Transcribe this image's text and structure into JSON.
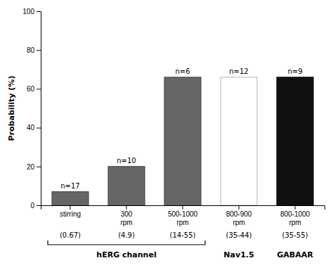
{
  "chart_data": {
    "type": "bar",
    "categories": [
      "stirring",
      "300\nrpm",
      "500-1000\nrpm",
      "800-900\nrpm",
      "800-1000\nrpm"
    ],
    "values": [
      7,
      20,
      66,
      66,
      66
    ],
    "colors": [
      "#666666",
      "#666666",
      "#666666",
      "#ffffff",
      "#111111"
    ],
    "y_label": "Probability (%)",
    "ylim": [
      0,
      100
    ],
    "yticks": [
      0,
      20,
      40,
      60,
      80,
      100
    ],
    "grid": false,
    "annotations": {
      "above_bars": [
        "n=17",
        "n=10",
        "n=6",
        "n=12",
        "n=9"
      ],
      "below_ticks": [
        "(0.67)",
        "(4.9)",
        "(14-55)",
        "(35-44)",
        "(35-55)"
      ],
      "groups": [
        {
          "text": "hERG channel",
          "span": 3
        },
        {
          "text": "Nav1.5",
          "span": 1
        },
        {
          "text": "GABAAR",
          "span": 1
        }
      ]
    }
  }
}
